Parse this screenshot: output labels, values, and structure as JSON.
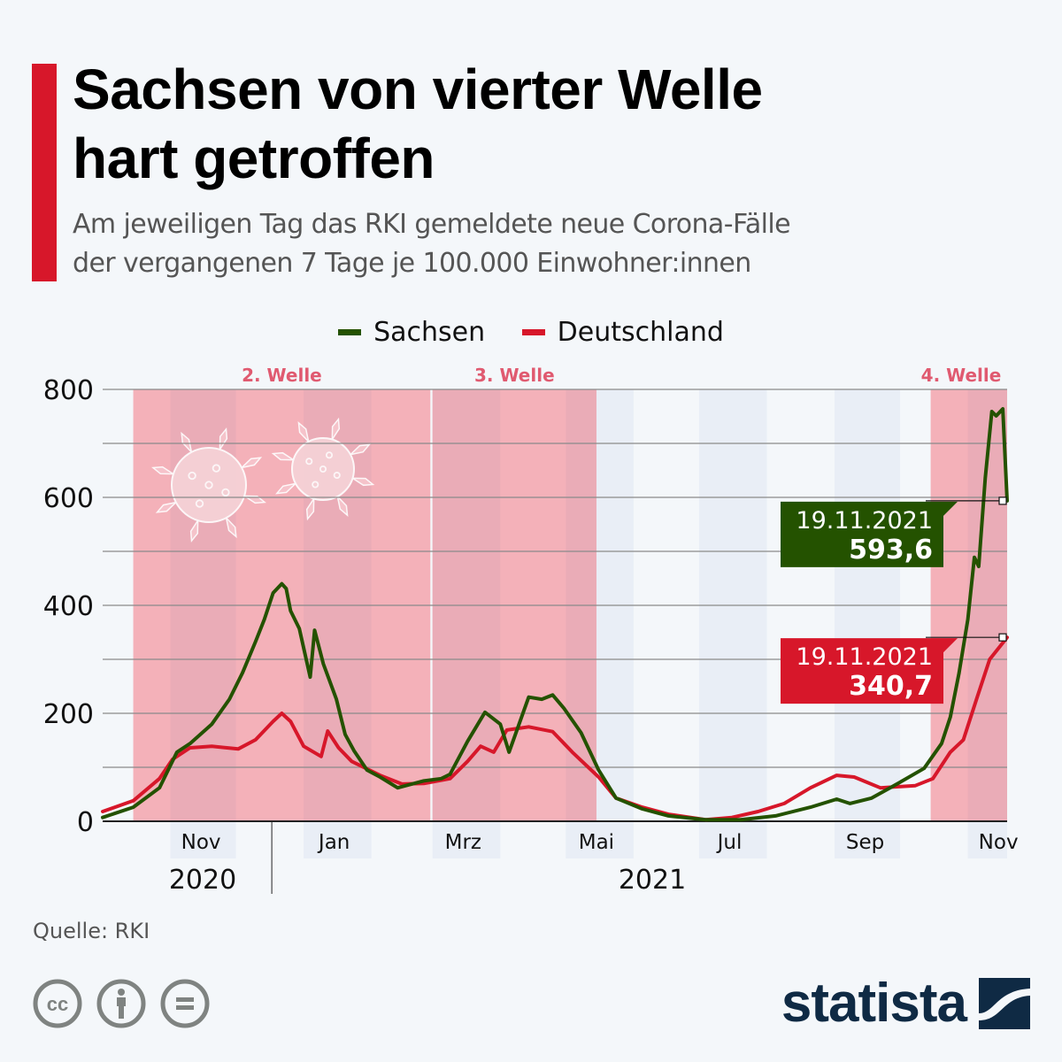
{
  "header": {
    "title_line1": "Sachsen von vierter Welle",
    "title_line2": "hart getroffen",
    "subtitle_line1": "Am jeweiligen Tag das RKI gemeldete neue Corona-Fälle",
    "subtitle_line2": "der vergangenen 7 Tage je 100.000 Einwohner:innen"
  },
  "colors": {
    "accent": "#d7172a",
    "sachsen": "#245200",
    "deutschland": "#d7172a",
    "wave_band": "#f4b1b9",
    "wave_band_alt": "#eaacb7",
    "month_band": "#e9eef6",
    "wave_label": "#e05a70"
  },
  "footer": {
    "source": "Quelle: RKI",
    "icons": [
      "cc-icon",
      "attribution-icon",
      "no-derivatives-icon"
    ],
    "logo_text": "statista"
  },
  "chart_data": {
    "type": "line",
    "title": "Sachsen von vierter Welle hart getroffen",
    "subtitle": "Am jeweiligen Tag das RKI gemeldete neue Corona-Fälle der vergangenen 7 Tage je 100.000 Einwohner:innen",
    "xlabel": "",
    "ylabel": "",
    "x_range": [
      "2020-10-01",
      "2021-11-19"
    ],
    "ylim": [
      0,
      800
    ],
    "y_ticks": [
      0,
      200,
      400,
      600,
      800
    ],
    "y_tick_labels": [
      "0",
      "200",
      "400",
      "600",
      "800"
    ],
    "y_gridlines": [
      0,
      100,
      200,
      300,
      400,
      500,
      600,
      700,
      800
    ],
    "grid": true,
    "legend_position": "top-center",
    "x_month_labels": [
      {
        "label": "Nov",
        "date": "2020-11-15"
      },
      {
        "label": "Jan",
        "date": "2021-01-15"
      },
      {
        "label": "Mrz",
        "date": "2021-03-15"
      },
      {
        "label": "Mai",
        "date": "2021-05-15"
      },
      {
        "label": "Jul",
        "date": "2021-07-15"
      },
      {
        "label": "Sep",
        "date": "2021-09-15"
      },
      {
        "label": "Nov",
        "date": "2021-11-15"
      }
    ],
    "x_month_bands": [
      [
        "2020-11-01",
        "2020-12-01"
      ],
      [
        "2021-01-01",
        "2021-02-01"
      ],
      [
        "2021-03-01",
        "2021-04-01"
      ],
      [
        "2021-05-01",
        "2021-06-01"
      ],
      [
        "2021-07-01",
        "2021-08-01"
      ],
      [
        "2021-09-01",
        "2021-10-01"
      ],
      [
        "2021-11-01",
        "2021-11-19"
      ]
    ],
    "x_year_labels": [
      {
        "label": "2020",
        "center": "2020-11-15"
      },
      {
        "label": "2021",
        "center": "2021-06-10"
      }
    ],
    "year_divider": "2021-01-01",
    "annotations_bands": [
      {
        "label": "2. Welle",
        "start": "2020-10-15",
        "end": "2021-02-28"
      },
      {
        "label": "3. Welle",
        "start": "2021-03-01",
        "end": "2021-05-15"
      },
      {
        "label": "4. Welle",
        "start": "2021-10-15",
        "end": "2021-11-19"
      }
    ],
    "series": [
      {
        "name": "Sachsen",
        "color": "#245200",
        "points": [
          [
            "2020-10-01",
            7
          ],
          [
            "2020-10-15",
            26
          ],
          [
            "2020-10-27",
            62
          ],
          [
            "2020-11-04",
            128
          ],
          [
            "2020-11-10",
            144
          ],
          [
            "2020-11-20",
            180
          ],
          [
            "2020-11-28",
            226
          ],
          [
            "2020-12-04",
            275
          ],
          [
            "2020-12-10",
            333
          ],
          [
            "2020-12-14",
            374
          ],
          [
            "2020-12-18",
            423
          ],
          [
            "2020-12-22",
            440
          ],
          [
            "2020-12-24",
            431
          ],
          [
            "2020-12-26",
            390
          ],
          [
            "2020-12-30",
            357
          ],
          [
            "2021-01-04",
            267
          ],
          [
            "2021-01-06",
            354
          ],
          [
            "2021-01-10",
            292
          ],
          [
            "2021-01-16",
            226
          ],
          [
            "2021-01-20",
            161
          ],
          [
            "2021-01-24",
            131
          ],
          [
            "2021-01-30",
            95
          ],
          [
            "2021-02-05",
            82
          ],
          [
            "2021-02-13",
            62
          ],
          [
            "2021-02-25",
            75
          ],
          [
            "2021-03-05",
            79
          ],
          [
            "2021-03-09",
            87
          ],
          [
            "2021-03-17",
            148
          ],
          [
            "2021-03-25",
            202
          ],
          [
            "2021-04-01",
            180
          ],
          [
            "2021-04-05",
            128
          ],
          [
            "2021-04-14",
            230
          ],
          [
            "2021-04-20",
            226
          ],
          [
            "2021-04-25",
            234
          ],
          [
            "2021-04-30",
            210
          ],
          [
            "2021-05-08",
            164
          ],
          [
            "2021-05-16",
            95
          ],
          [
            "2021-05-24",
            43
          ],
          [
            "2021-06-05",
            23
          ],
          [
            "2021-06-17",
            10
          ],
          [
            "2021-07-04",
            3
          ],
          [
            "2021-07-20",
            3
          ],
          [
            "2021-08-05",
            10
          ],
          [
            "2021-08-21",
            26
          ],
          [
            "2021-09-02",
            41
          ],
          [
            "2021-09-08",
            33
          ],
          [
            "2021-09-18",
            43
          ],
          [
            "2021-09-30",
            70
          ],
          [
            "2021-10-12",
            98
          ],
          [
            "2021-10-20",
            144
          ],
          [
            "2021-10-24",
            193
          ],
          [
            "2021-10-28",
            275
          ],
          [
            "2021-11-01",
            374
          ],
          [
            "2021-11-04",
            489
          ],
          [
            "2021-11-06",
            472
          ],
          [
            "2021-11-09",
            636
          ],
          [
            "2021-11-12",
            759
          ],
          [
            "2021-11-14",
            751
          ],
          [
            "2021-11-17",
            764
          ],
          [
            "2021-11-19",
            593.6
          ]
        ]
      },
      {
        "name": "Deutschland",
        "color": "#d7172a",
        "points": [
          [
            "2020-10-01",
            18
          ],
          [
            "2020-10-15",
            38
          ],
          [
            "2020-10-27",
            79
          ],
          [
            "2020-11-02",
            115
          ],
          [
            "2020-11-10",
            136
          ],
          [
            "2020-11-20",
            139
          ],
          [
            "2020-12-02",
            134
          ],
          [
            "2020-12-10",
            151
          ],
          [
            "2020-12-18",
            185
          ],
          [
            "2020-12-22",
            200
          ],
          [
            "2020-12-26",
            185
          ],
          [
            "2021-01-01",
            139
          ],
          [
            "2021-01-09",
            120
          ],
          [
            "2021-01-12",
            167
          ],
          [
            "2021-01-17",
            136
          ],
          [
            "2021-01-23",
            111
          ],
          [
            "2021-02-05",
            85
          ],
          [
            "2021-02-15",
            69
          ],
          [
            "2021-02-25",
            70
          ],
          [
            "2021-03-09",
            79
          ],
          [
            "2021-03-17",
            111
          ],
          [
            "2021-03-23",
            139
          ],
          [
            "2021-03-29",
            128
          ],
          [
            "2021-04-04",
            169
          ],
          [
            "2021-04-14",
            175
          ],
          [
            "2021-04-25",
            166
          ],
          [
            "2021-05-04",
            128
          ],
          [
            "2021-05-16",
            82
          ],
          [
            "2021-05-24",
            43
          ],
          [
            "2021-06-05",
            26
          ],
          [
            "2021-06-17",
            13
          ],
          [
            "2021-07-04",
            3
          ],
          [
            "2021-07-16",
            7
          ],
          [
            "2021-07-28",
            18
          ],
          [
            "2021-08-09",
            33
          ],
          [
            "2021-08-21",
            62
          ],
          [
            "2021-09-02",
            85
          ],
          [
            "2021-09-10",
            82
          ],
          [
            "2021-09-22",
            62
          ],
          [
            "2021-10-08",
            66
          ],
          [
            "2021-10-16",
            79
          ],
          [
            "2021-10-24",
            128
          ],
          [
            "2021-10-30",
            151
          ],
          [
            "2021-11-05",
            226
          ],
          [
            "2021-11-11",
            300
          ],
          [
            "2021-11-19",
            340.7
          ]
        ]
      }
    ],
    "callouts": [
      {
        "series": "Sachsen",
        "date_label": "19.11.2021",
        "value_label": "593,6",
        "value": 593.6
      },
      {
        "series": "Deutschland",
        "date_label": "19.11.2021",
        "value_label": "340,7",
        "value": 340.7
      }
    ],
    "legend": [
      "Sachsen",
      "Deutschland"
    ]
  }
}
